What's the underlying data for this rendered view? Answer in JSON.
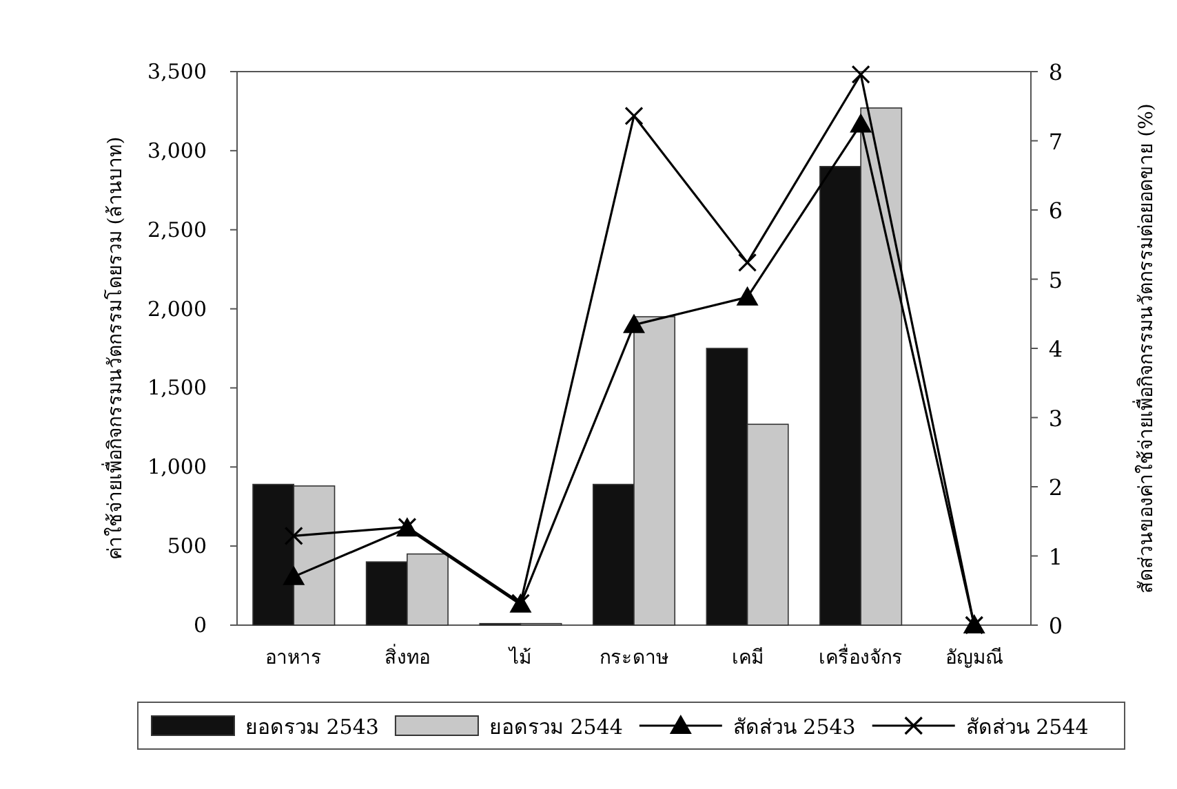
{
  "chart_data": {
    "type": "bar",
    "ylabel": "ค่าใช้จ่ายเพื่อกิจกรรมนวัตกรรมโดยรวม (ล้านบาท)",
    "y2label": "สัดส่วนของค่าใช้จ่ายเพื่อกิจกรรมนวัตกรรมต่อยอดขาย (%)",
    "categories": [
      "อาหาร",
      "สิ่งทอ",
      "ไม้",
      "กระดาษ",
      "เคมี",
      "เครื่องจักร",
      "อัญมณี"
    ],
    "series": [
      {
        "name": "ยอดรวม 2543",
        "color": "#111111",
        "values": [
          890,
          400,
          10,
          890,
          1750,
          2900,
          0
        ]
      },
      {
        "name": "ยอดรวม 2544",
        "color": "#c8c8c8",
        "values": [
          880,
          450,
          10,
          1950,
          1270,
          3270,
          0
        ]
      },
      {
        "name": "สัดส่วน 2543",
        "type": "line",
        "axis": "y2",
        "color": "#000000",
        "marker": "triangle",
        "values": [
          0.7,
          1.4,
          0.3,
          4.34,
          4.74,
          7.24,
          0
        ]
      },
      {
        "name": "สัดส่วน 2544",
        "type": "line",
        "axis": "y2",
        "color": "#000000",
        "marker": "cross",
        "values": [
          1.29,
          1.42,
          0.32,
          7.36,
          5.24,
          7.96,
          0
        ]
      }
    ],
    "ylim": [
      0,
      3500
    ],
    "yticks": [
      0,
      500,
      {
        "value": 1000,
        "label": "1,000"
      },
      {
        "value": 1500,
        "label": "1,500"
      },
      {
        "value": 2000,
        "label": "2,000"
      },
      {
        "value": 2500,
        "label": "2,500"
      },
      {
        "value": 3000,
        "label": "3,000"
      },
      {
        "value": 3500,
        "label": "3,500"
      }
    ],
    "y2lim": [
      0,
      8
    ],
    "y2ticks": [
      0,
      1,
      2,
      3,
      4,
      5,
      6,
      7,
      8
    ],
    "legend": "bottom",
    "grid": false
  }
}
